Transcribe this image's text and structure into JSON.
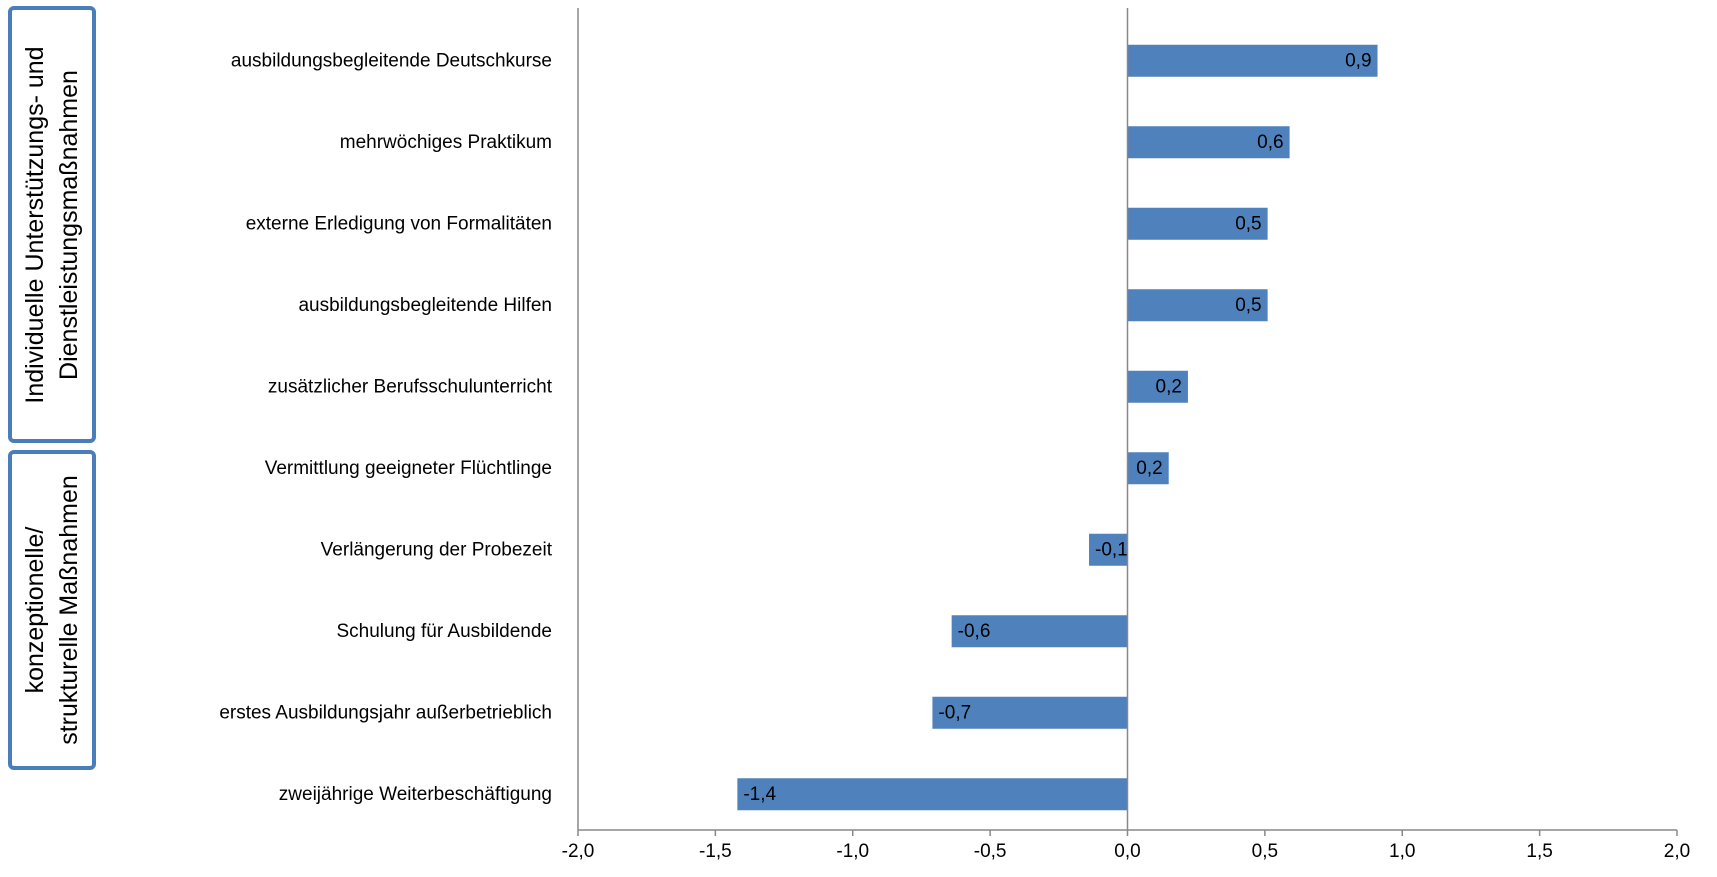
{
  "groups": [
    {
      "lines": [
        "Individuelle Unterstützungs- und",
        "Dienstleistungsmaßnahmen"
      ]
    },
    {
      "lines": [
        "konzeptionelle/",
        "strukturelle Maßnahmen"
      ]
    }
  ],
  "colors": {
    "bar": "#4f81bd",
    "group_border": "#4a7ebb",
    "axis": "#888888"
  },
  "chart_data": {
    "type": "bar",
    "orientation": "horizontal",
    "categories": [
      "ausbildungsbegleitende Deutschkurse",
      "mehrwöchiges Praktikum",
      "externe Erledigung von Formalitäten",
      "ausbildungsbegleitende Hilfen",
      "zusätzlicher Berufsschulunterricht",
      "Vermittlung geeigneter Flüchtlinge",
      "Verlängerung der Probezeit",
      "Schulung für Ausbildende",
      "erstes Ausbildungsjahr außerbetrieblich",
      "zweijährige Weiterbeschäftigung"
    ],
    "values": [
      0.91,
      0.59,
      0.51,
      0.51,
      0.22,
      0.15,
      -0.14,
      -0.64,
      -0.71,
      -1.42
    ],
    "data_labels": [
      "0,9",
      "0,6",
      "0,5",
      "0,5",
      "0,2",
      "0,2",
      "-0,1",
      "-0,6",
      "-0,7",
      "-1,4"
    ],
    "xlim": [
      -2.0,
      2.0
    ],
    "xticks": [
      -2.0,
      -1.5,
      -1.0,
      -0.5,
      0.0,
      0.5,
      1.0,
      1.5,
      2.0
    ],
    "xtick_labels": [
      "-2,0",
      "-1,5",
      "-1,0",
      "-0,5",
      "0,0",
      "0,5",
      "1,0",
      "1,5",
      "2,0"
    ],
    "grid": false,
    "legend": "none"
  }
}
